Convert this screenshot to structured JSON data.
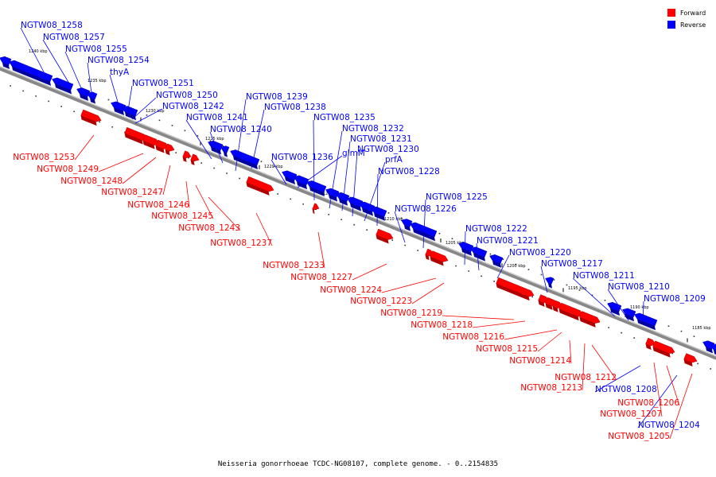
{
  "caption": "Neisseria gonorrhoeae TCDC-NG08107, complete genome. - 0..2154835",
  "legend": [
    {
      "label": "Forward",
      "color": "#ff0000"
    },
    {
      "label": "Reverse",
      "color": "#0000ff"
    }
  ],
  "ticks": [
    "1240 kbp",
    "1235 kbp",
    "1230 kbp",
    "1225 kbp",
    "1220 kbp",
    "1215 kbp",
    "1210 kbp",
    "1205 kbp",
    "1200 kbp",
    "1195 kbp",
    "1190 kbp",
    "1185 kbp"
  ],
  "reverse_genes": [
    "NGTW08_1258",
    "NGTW08_1257",
    "NGTW08_1255",
    "NGTW08_1254",
    "thyA",
    "NGTW08_1251",
    "NGTW08_1250",
    "NGTW08_1242",
    "NGTW08_1241",
    "NGTW08_1240",
    "NGTW08_1239",
    "NGTW08_1238",
    "NGTW08_1236",
    "glmM",
    "NGTW08_1235",
    "NGTW08_1232",
    "NGTW08_1231",
    "NGTW08_1230",
    "prfA",
    "NGTW08_1228",
    "NGTW08_1226",
    "NGTW08_1225",
    "NGTW08_1222",
    "NGTW08_1221",
    "NGTW08_1220",
    "NGTW08_1217",
    "NGTW08_1211",
    "NGTW08_1210",
    "NGTW08_1209",
    "NGTW08_1208",
    "NGTW08_1204"
  ],
  "forward_genes": [
    "NGTW08_1253",
    "NGTW08_1249",
    "NGTW08_1248",
    "NGTW08_1247",
    "NGTW08_1246",
    "NGTW08_1245",
    "NGTW08_1243",
    "NGTW08_1237",
    "NGTW08_1233",
    "NGTW08_1227",
    "NGTW08_1224",
    "NGTW08_1223",
    "NGTW08_1219",
    "NGTW08_1218",
    "NGTW08_1216",
    "NGTW08_1215",
    "NGTW08_1214",
    "NGTW08_1213",
    "NGTW08_1212",
    "NGTW08_1207",
    "NGTW08_1206",
    "NGTW08_1205"
  ]
}
